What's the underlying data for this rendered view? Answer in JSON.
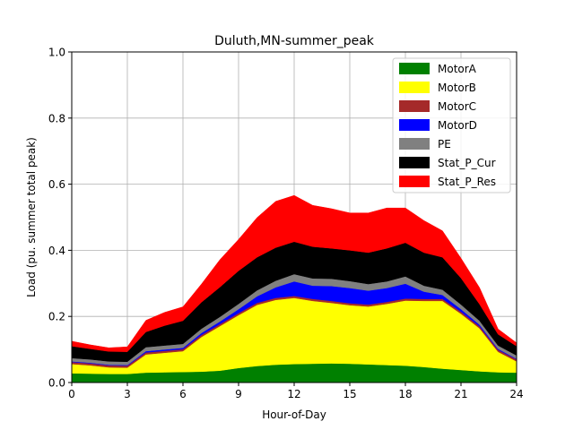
{
  "chart_data": {
    "type": "area",
    "stacked": true,
    "title": "Duluth,MN-summer_peak",
    "xlabel": "Hour-of-Day",
    "ylabel": "Load (pu. summer total peak)",
    "xlim": [
      0,
      24
    ],
    "ylim": [
      0,
      1.0
    ],
    "xticks": [
      0,
      3,
      6,
      9,
      12,
      15,
      18,
      21,
      24
    ],
    "xtick_labels": [
      "0",
      "3",
      "6",
      "9",
      "12",
      "15",
      "18",
      "21",
      "24"
    ],
    "yticks": [
      0,
      0.2,
      0.4,
      0.6,
      0.8,
      1.0
    ],
    "ytick_labels": [
      "0.0",
      "0.2",
      "0.4",
      "0.6",
      "0.8",
      "1.0"
    ],
    "grid": true,
    "legend_position": "top-right",
    "x": [
      0,
      1,
      2,
      3,
      4,
      5,
      6,
      7,
      8,
      9,
      10,
      11,
      12,
      13,
      14,
      15,
      16,
      17,
      18,
      19,
      20,
      21,
      22,
      23,
      24
    ],
    "series": [
      {
        "name": "MotorA",
        "color": "#008000",
        "values": [
          0.028,
          0.027,
          0.026,
          0.026,
          0.03,
          0.031,
          0.032,
          0.033,
          0.036,
          0.044,
          0.05,
          0.054,
          0.056,
          0.057,
          0.058,
          0.057,
          0.055,
          0.053,
          0.051,
          0.047,
          0.042,
          0.038,
          0.034,
          0.031,
          0.03
        ]
      },
      {
        "name": "MotorB",
        "color": "#ffff00",
        "values": [
          0.028,
          0.025,
          0.02,
          0.019,
          0.055,
          0.059,
          0.063,
          0.105,
          0.135,
          0.16,
          0.185,
          0.196,
          0.2,
          0.19,
          0.183,
          0.177,
          0.175,
          0.185,
          0.197,
          0.2,
          0.205,
          0.17,
          0.13,
          0.062,
          0.034
        ]
      },
      {
        "name": "MotorC",
        "color": "#a52a2a",
        "values": [
          0.006,
          0.006,
          0.006,
          0.006,
          0.006,
          0.006,
          0.006,
          0.006,
          0.006,
          0.006,
          0.006,
          0.006,
          0.006,
          0.006,
          0.006,
          0.006,
          0.006,
          0.006,
          0.006,
          0.006,
          0.006,
          0.006,
          0.006,
          0.006,
          0.006
        ]
      },
      {
        "name": "MotorD",
        "color": "#0000ff",
        "values": [
          0.002,
          0.002,
          0.002,
          0.002,
          0.004,
          0.004,
          0.004,
          0.006,
          0.008,
          0.012,
          0.02,
          0.032,
          0.044,
          0.04,
          0.045,
          0.046,
          0.042,
          0.042,
          0.045,
          0.022,
          0.012,
          0.008,
          0.005,
          0.003,
          0.002
        ]
      },
      {
        "name": "PE",
        "color": "#808080",
        "values": [
          0.01,
          0.01,
          0.01,
          0.01,
          0.012,
          0.012,
          0.012,
          0.013,
          0.014,
          0.016,
          0.018,
          0.02,
          0.022,
          0.022,
          0.022,
          0.021,
          0.02,
          0.02,
          0.022,
          0.018,
          0.016,
          0.014,
          0.012,
          0.01,
          0.01
        ]
      },
      {
        "name": "Stat_P_Cur",
        "color": "#000000",
        "values": [
          0.036,
          0.032,
          0.03,
          0.03,
          0.046,
          0.06,
          0.07,
          0.08,
          0.09,
          0.1,
          0.1,
          0.1,
          0.098,
          0.096,
          0.092,
          0.093,
          0.095,
          0.1,
          0.102,
          0.1,
          0.098,
          0.08,
          0.05,
          0.034,
          0.028
        ]
      },
      {
        "name": "Stat_P_Res",
        "color": "#ff0000",
        "values": [
          0.015,
          0.012,
          0.011,
          0.015,
          0.035,
          0.04,
          0.042,
          0.055,
          0.083,
          0.095,
          0.12,
          0.14,
          0.14,
          0.125,
          0.12,
          0.113,
          0.12,
          0.122,
          0.105,
          0.097,
          0.08,
          0.06,
          0.05,
          0.016,
          0.01
        ]
      }
    ]
  }
}
